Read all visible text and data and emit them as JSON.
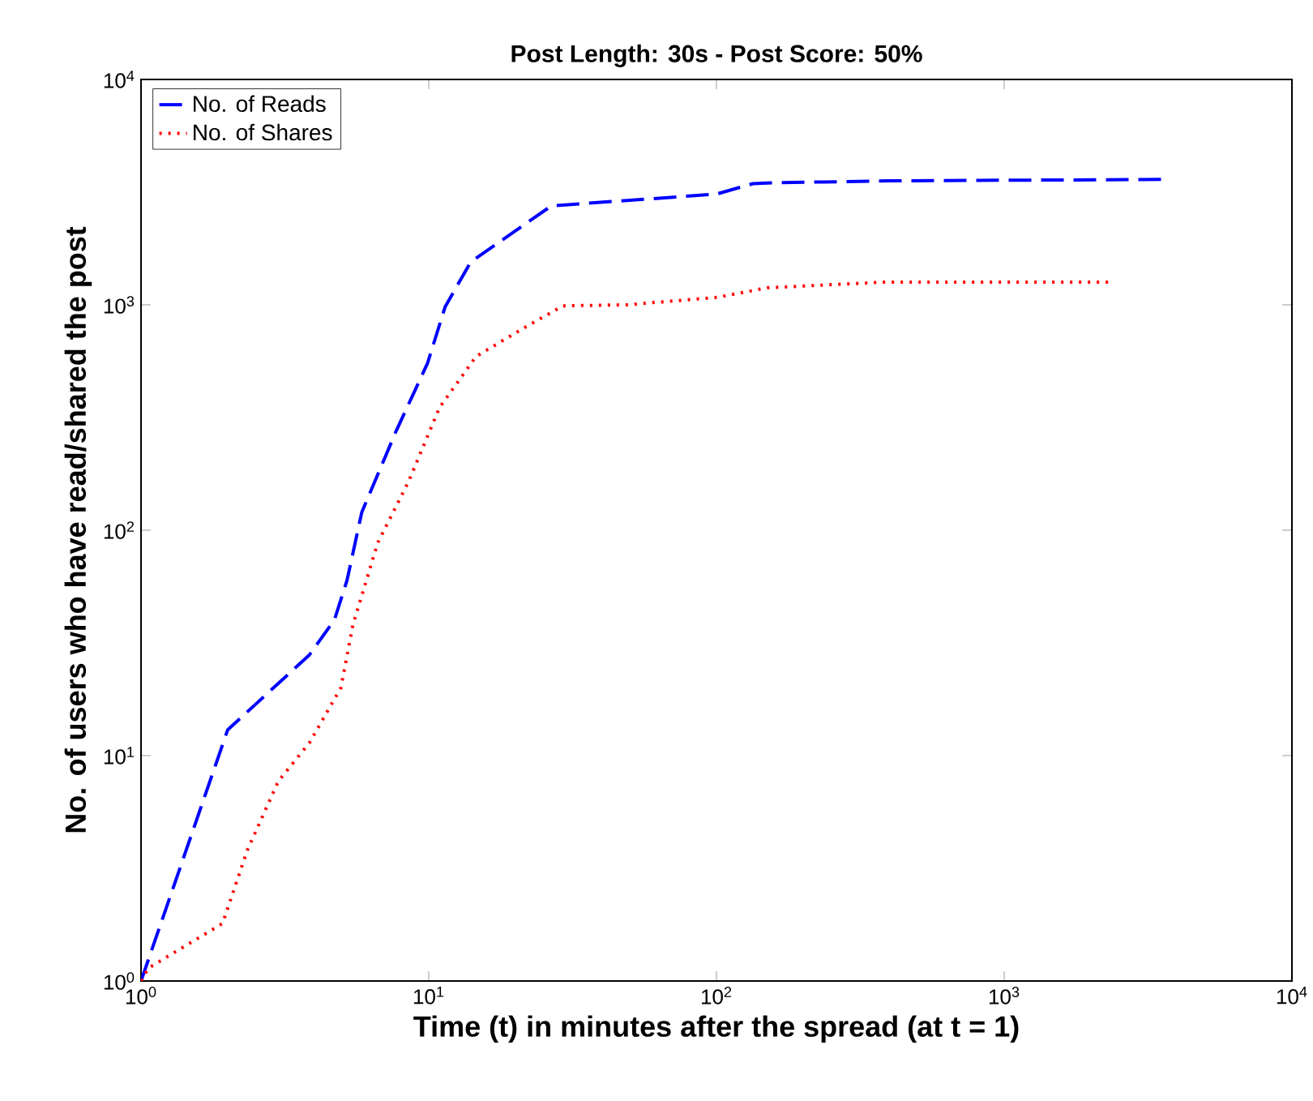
{
  "chart_data": {
    "type": "line",
    "title": "Post Length: 30s - Post Score: 50%",
    "xlabel": "Time (t) in minutes after the spread (at t = 1)",
    "ylabel": "No. of users who have read/shared the post",
    "log": "xy",
    "grid": false,
    "legend": "top left",
    "xlim": [
      1,
      10000
    ],
    "ylim": [
      1,
      10000
    ],
    "xticks": [
      {
        "value": 1,
        "label": "10$^{0}$"
      },
      {
        "value": 10,
        "label": "10$^{1}$"
      },
      {
        "value": 100,
        "label": "10$^{2}$"
      },
      {
        "value": 1000,
        "label": "10$^{3}$"
      },
      {
        "value": 10000,
        "label": "10$^{4}$"
      }
    ],
    "yticks": [
      {
        "value": 1,
        "label": "10$^{0}$"
      },
      {
        "value": 10,
        "label": "10$^{1}$"
      },
      {
        "value": 100,
        "label": "10$^{2}$"
      },
      {
        "value": 1000,
        "label": "10$^{3}$"
      },
      {
        "value": 10000,
        "label": "10$^{4}$"
      }
    ],
    "series": [
      {
        "name": "No. of Reads",
        "color": "#0000ff",
        "line_style": "dashed",
        "x": [
          1,
          2,
          3.85,
          4.7,
          5.2,
          5.85,
          7.7,
          9.9,
          11.4,
          14,
          19.7,
          26.7,
          100,
          134,
          160,
          400,
          3700
        ],
        "values": [
          1,
          13,
          28,
          40,
          60,
          120,
          275,
          550,
          980,
          1550,
          2100,
          2750,
          3100,
          3450,
          3480,
          3550,
          3600
        ]
      },
      {
        "name": "No. of Shares",
        "color": "#ff0000",
        "line_style": "dotted",
        "x": [
          1,
          1.06,
          1.92,
          2.34,
          3.0,
          3.85,
          4.95,
          5.45,
          6.65,
          8.5,
          10.9,
          14.6,
          21.8,
          29.3,
          48.7,
          101,
          150,
          378,
          2330
        ],
        "values": [
          1,
          1.14,
          1.8,
          3.8,
          7.7,
          11.4,
          20,
          38,
          88,
          164,
          350,
          590,
          800,
          990,
          1000,
          1080,
          1190,
          1260,
          1260
        ]
      }
    ]
  }
}
